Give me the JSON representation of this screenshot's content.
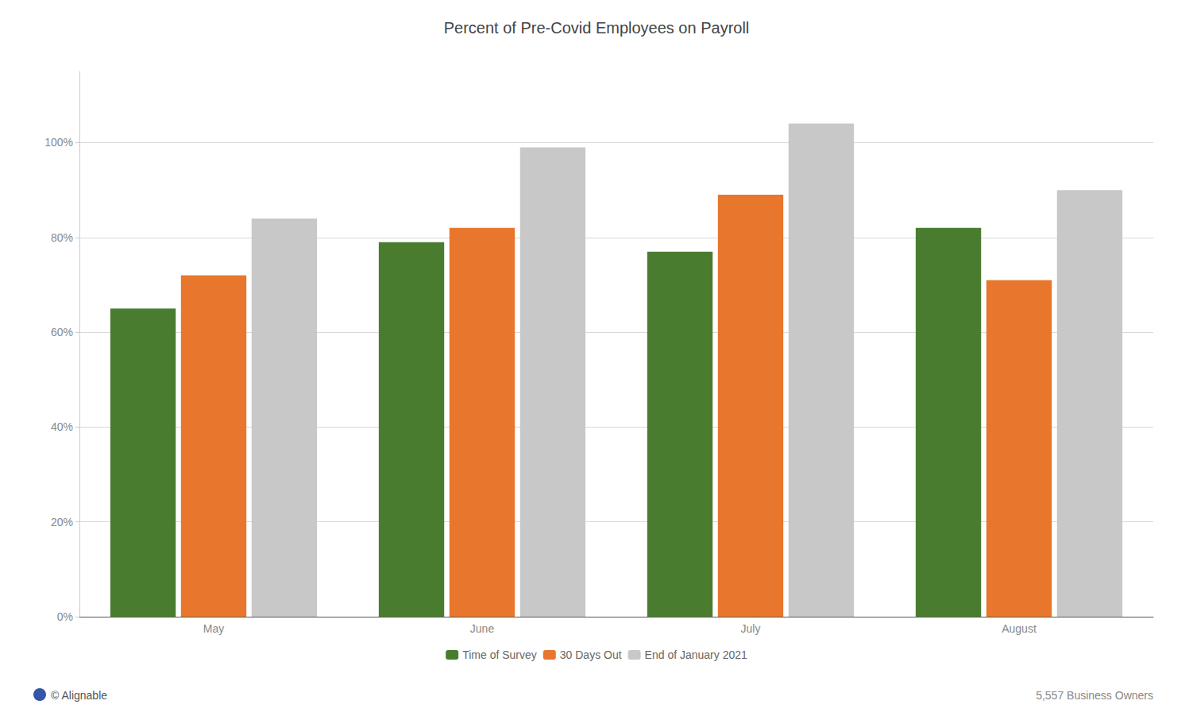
{
  "chart_data": {
    "type": "bar",
    "title": "Percent of Pre-Covid Employees on Payroll",
    "categories": [
      "May",
      "June",
      "July",
      "August"
    ],
    "series": [
      {
        "name": "Time of Survey",
        "color": "#4a7c2f",
        "values": [
          0.65,
          0.79,
          0.77,
          0.82
        ]
      },
      {
        "name": "30 Days Out",
        "color": "#e8762c",
        "values": [
          0.72,
          0.82,
          0.89,
          0.71
        ]
      },
      {
        "name": "End of January 2021",
        "color": "#c8c8c8",
        "values": [
          0.84,
          0.99,
          1.04,
          0.9
        ]
      }
    ],
    "ylim": [
      0,
      1.15
    ],
    "yticks": [
      {
        "value": 0,
        "label": "0%"
      },
      {
        "value": 0.2,
        "label": "20%"
      },
      {
        "value": 0.4,
        "label": "40%"
      },
      {
        "value": 0.6,
        "label": "60%"
      },
      {
        "value": 0.8,
        "label": "80%"
      },
      {
        "value": 1.0,
        "label": "100%"
      }
    ],
    "grid": true,
    "legend": "bottom",
    "annotations": [
      "© Alignable",
      "5,557 Business Owners"
    ]
  }
}
